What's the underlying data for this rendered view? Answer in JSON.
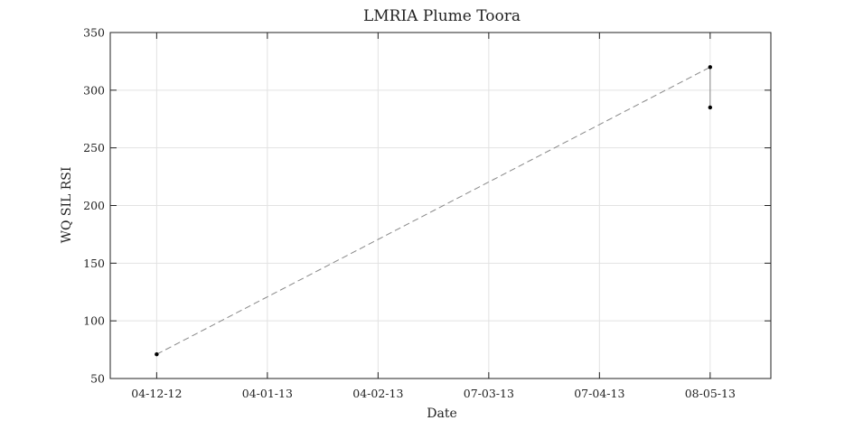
{
  "chart_data": {
    "type": "line",
    "title": "LMRIA Plume Toora",
    "xlabel": "Date",
    "ylabel": "WQ SIL RSI",
    "x_tick_labels": [
      "04-12-12",
      "04-01-13",
      "04-02-13",
      "07-03-13",
      "07-04-13",
      "08-05-13"
    ],
    "x_tick_dates": [
      "2012-12-04",
      "2013-01-04",
      "2013-02-04",
      "2013-03-07",
      "2013-04-07",
      "2013-05-08"
    ],
    "x_range": [
      "2012-11-21",
      "2013-05-25"
    ],
    "y_ticks": [
      50,
      100,
      150,
      200,
      250,
      300,
      350
    ],
    "ylim": [
      50,
      350
    ],
    "grid": true,
    "series": [
      {
        "points": [
          {
            "x": "2012-12-04",
            "y": 71
          },
          {
            "x": "2013-05-08",
            "y": 320
          },
          {
            "x": "2013-05-08",
            "y": 285
          }
        ],
        "marker_color": "#000000",
        "line_color": "#888888"
      }
    ]
  }
}
